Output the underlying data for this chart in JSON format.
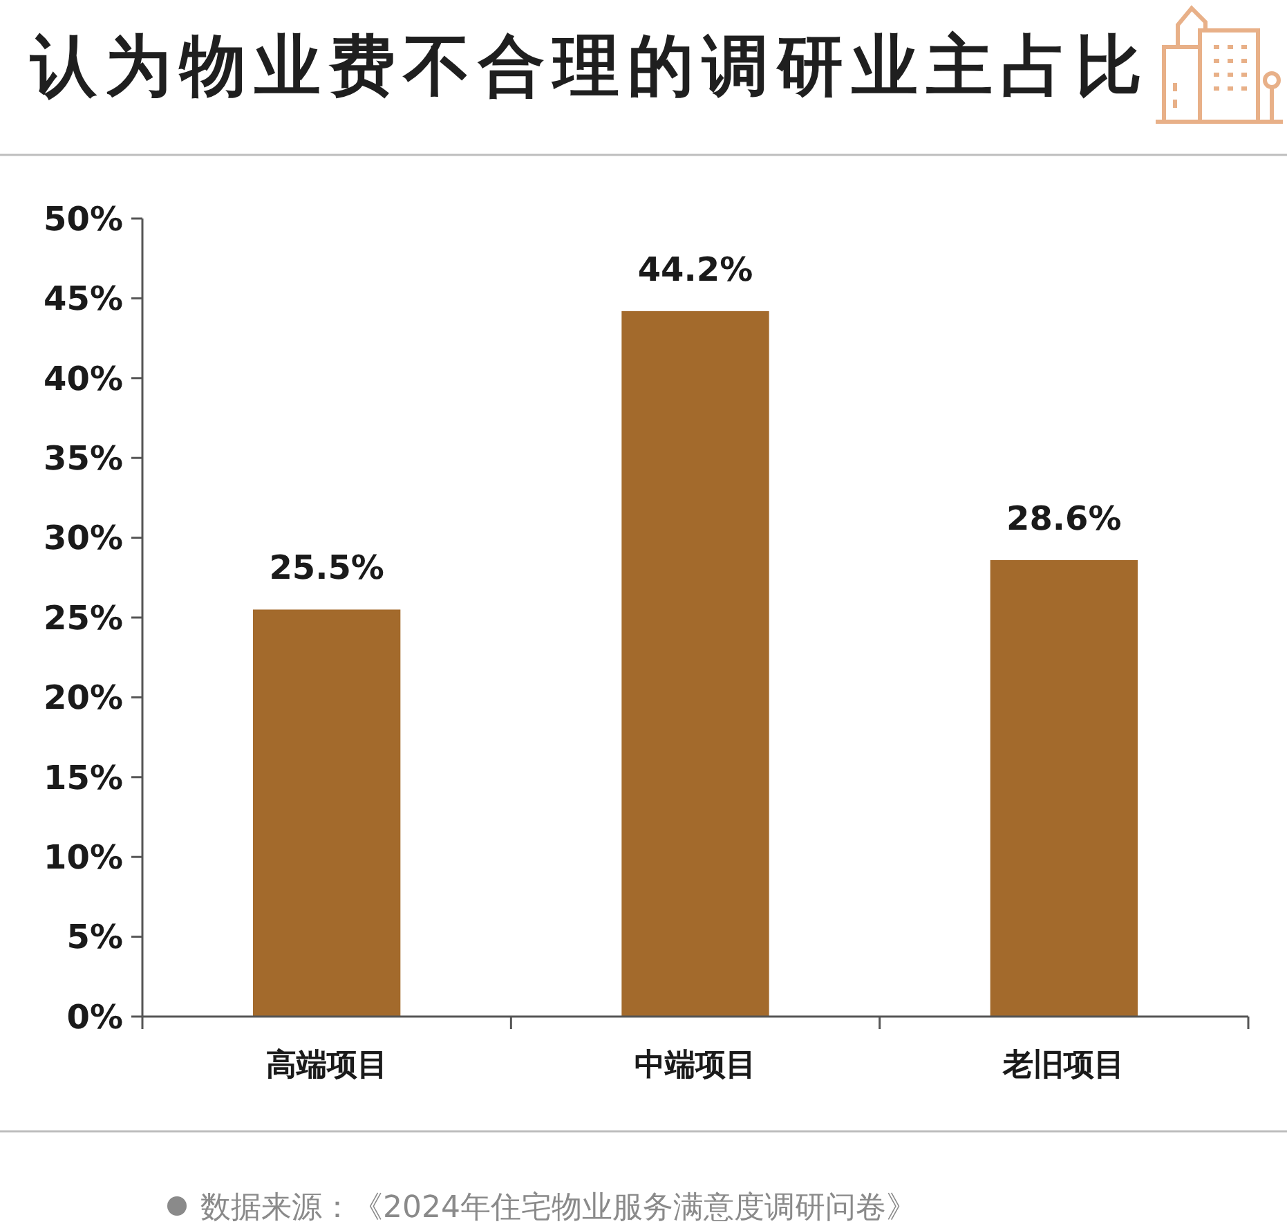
{
  "chart_data": {
    "type": "bar",
    "title": "认为物业费不合理的调研业主占比",
    "categories": [
      "高端项目",
      "中端项目",
      "老旧项目"
    ],
    "values": [
      25.5,
      44.2,
      28.6
    ],
    "value_labels": [
      "25.5%",
      "44.2%",
      "28.6%"
    ],
    "color": "#a36a2c",
    "ylim": [
      0,
      50
    ],
    "yticks": [
      {
        "value": 0,
        "label": "0%"
      },
      {
        "value": 5,
        "label": "5%"
      },
      {
        "value": 10,
        "label": "10%"
      },
      {
        "value": 15,
        "label": "15%"
      },
      {
        "value": 20,
        "label": "20%"
      },
      {
        "value": 25,
        "label": "25%"
      },
      {
        "value": 30,
        "label": "30%"
      },
      {
        "value": 35,
        "label": "35%"
      },
      {
        "value": 40,
        "label": "40%"
      },
      {
        "value": 45,
        "label": "45%"
      },
      {
        "value": 50,
        "label": "50%"
      }
    ],
    "grid": false,
    "annotations": [
      "数据来源：《2024年住宅物业服务满意度调研问卷》"
    ]
  }
}
